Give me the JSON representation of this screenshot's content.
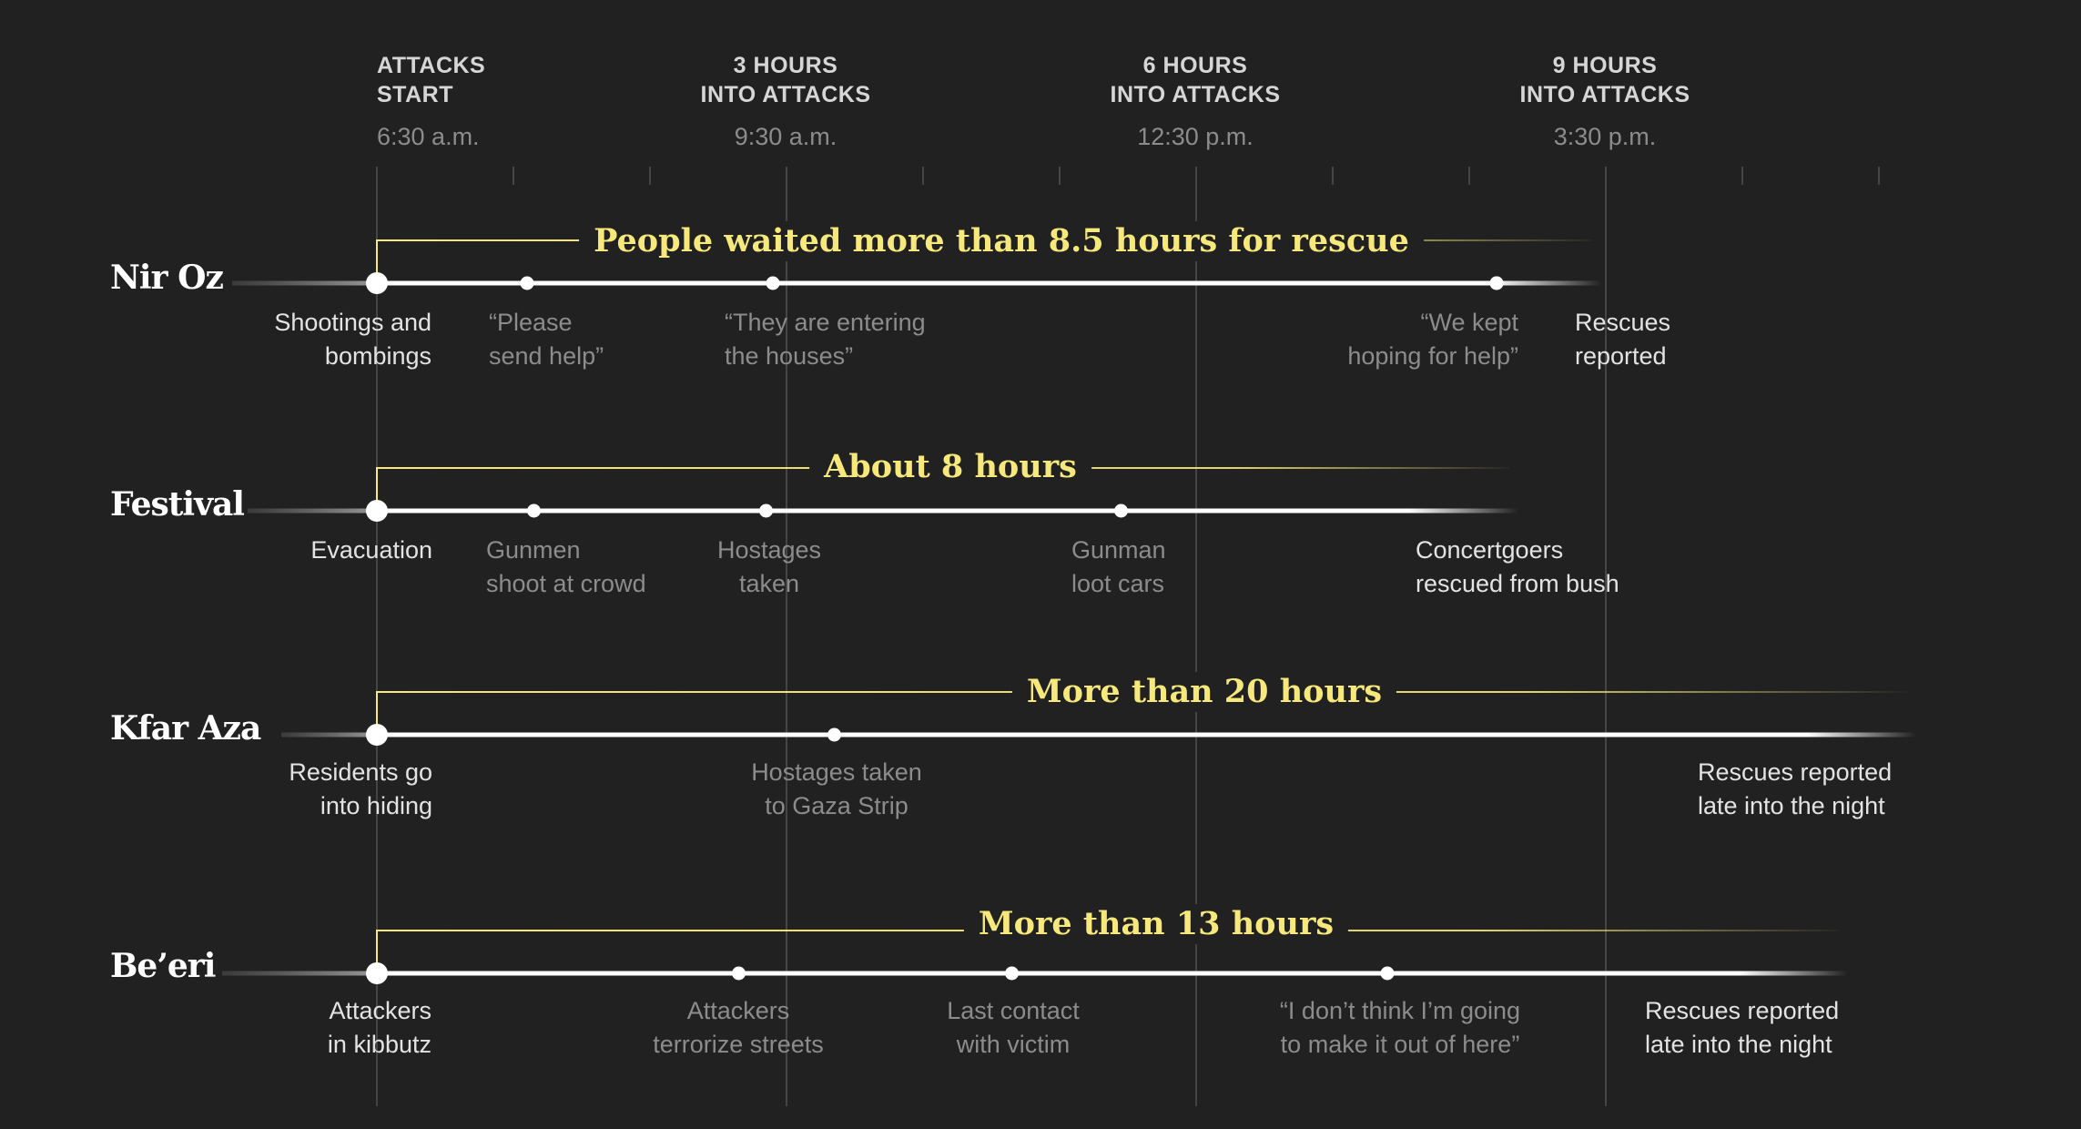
{
  "headers": [
    {
      "line1": "ATTACKS",
      "line2": "START",
      "time": "6:30 a.m."
    },
    {
      "line1": "3 HOURS",
      "line2": "INTO ATTACKS",
      "time": "9:30 a.m."
    },
    {
      "line1": "6 HOURS",
      "line2": "INTO ATTACKS",
      "time": "12:30 p.m."
    },
    {
      "line1": "9 HOURS",
      "line2": "INTO ATTACKS",
      "time": "3:30 p.m."
    }
  ],
  "colors": {
    "background": "#212121",
    "highlight": "#f6e87a",
    "line": "#ffffff",
    "muted": "#8c8c8c"
  },
  "rows": [
    {
      "name": "Nir Oz",
      "span_label": "People waited more than 8.5 hours for rescue",
      "events": [
        {
          "hour": 0,
          "line1": "Shootings and",
          "line2": "bombings",
          "emphasis": "strong"
        },
        {
          "hour": 1.1,
          "line1": "“Please",
          "line2": "send help”",
          "emphasis": "dim"
        },
        {
          "hour": 2.9,
          "line1": "“They are entering",
          "line2": "the houses”",
          "emphasis": "dim"
        },
        {
          "hour": 8.2,
          "line1": "“We kept",
          "line2": "hoping for help”",
          "emphasis": "dim"
        },
        {
          "hour": 8.9,
          "line1": "Rescues",
          "line2": "reported",
          "emphasis": "strong"
        }
      ]
    },
    {
      "name": "Festival",
      "span_label": "About 8 hours",
      "events": [
        {
          "hour": 0,
          "line1": "Evacuation",
          "line2": "",
          "emphasis": "strong"
        },
        {
          "hour": 1.15,
          "line1": "Gunmen",
          "line2": "shoot at crowd",
          "emphasis": "dim"
        },
        {
          "hour": 2.85,
          "line1": "Hostages",
          "line2": "taken",
          "emphasis": "dim"
        },
        {
          "hour": 5.45,
          "line1": "Gunman",
          "line2": "loot cars",
          "emphasis": "dim"
        },
        {
          "hour": 7.7,
          "line1": "Concertgoers",
          "line2": "rescued from bush",
          "emphasis": "strong"
        }
      ]
    },
    {
      "name": "Kfar Aza",
      "span_label": "More than 20 hours",
      "events": [
        {
          "hour": 0,
          "line1": "Residents go",
          "line2": "into hiding",
          "emphasis": "strong"
        },
        {
          "hour": 3.35,
          "line1": "Hostages taken",
          "line2": "to Gaza Strip",
          "emphasis": "dim"
        },
        {
          "hour": 11.0,
          "line1": "Rescues reported",
          "line2": "late into the night",
          "emphasis": "strong"
        }
      ]
    },
    {
      "name": "Be’eri",
      "span_label": "More than 13 hours",
      "events": [
        {
          "hour": 0,
          "line1": "Attackers",
          "line2": "in kibbutz",
          "emphasis": "strong"
        },
        {
          "hour": 2.65,
          "line1": "Attackers",
          "line2": "terrorize streets",
          "emphasis": "dim"
        },
        {
          "hour": 4.65,
          "line1": "Last contact",
          "line2": "with victim",
          "emphasis": "dim"
        },
        {
          "hour": 7.4,
          "line1": "“I don’t think I’m going",
          "line2": "to make it out of here”",
          "emphasis": "dim"
        },
        {
          "hour": 10.5,
          "line1": "Rescues reported",
          "line2": "late into the night",
          "emphasis": "strong"
        }
      ]
    }
  ]
}
